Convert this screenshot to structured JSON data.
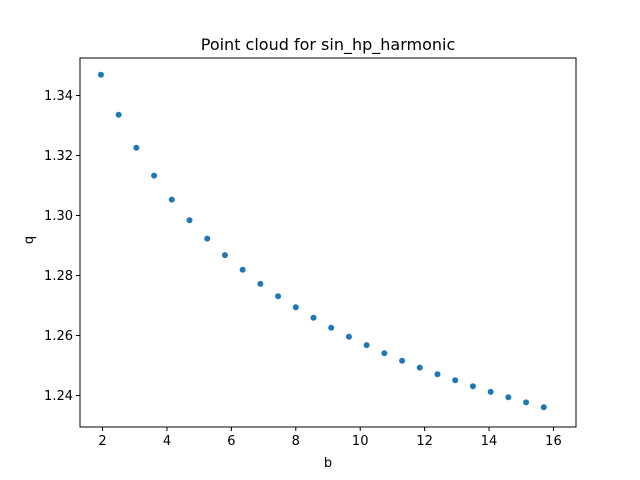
{
  "chart_data": {
    "type": "scatter",
    "title": "Point cloud for sin_hp_harmonic",
    "xlabel": "b",
    "ylabel": "q",
    "xlim": [
      1.3,
      16.7
    ],
    "ylim": [
      1.2295,
      1.3525
    ],
    "xticks": [
      2,
      4,
      6,
      8,
      10,
      12,
      14,
      16
    ],
    "xtick_labels": [
      "2",
      "4",
      "6",
      "8",
      "10",
      "12",
      "14",
      "16"
    ],
    "yticks": [
      1.24,
      1.26,
      1.28,
      1.3,
      1.32,
      1.34
    ],
    "ytick_labels": [
      "1.24",
      "1.26",
      "1.28",
      "1.30",
      "1.32",
      "1.34"
    ],
    "grid": false,
    "point_color": "#1f77b4",
    "series": [
      {
        "x": [
          1.95,
          2.5,
          3.05,
          3.6,
          4.15,
          4.7,
          5.25,
          5.8,
          6.35,
          6.9,
          7.45,
          8.0,
          8.55,
          9.1,
          9.65,
          10.2,
          10.75,
          11.3,
          11.85,
          12.4,
          12.95,
          13.5,
          14.05,
          14.6,
          15.15,
          15.7
        ],
        "y": [
          1.3469,
          1.3336,
          1.3226,
          1.3133,
          1.3053,
          1.2984,
          1.2923,
          1.2868,
          1.2819,
          1.2772,
          1.2731,
          1.2694,
          1.2659,
          1.2626,
          1.2596,
          1.2568,
          1.2541,
          1.2516,
          1.2493,
          1.2471,
          1.2451,
          1.2431,
          1.2412,
          1.2394,
          1.2377,
          1.2361
        ]
      }
    ]
  }
}
